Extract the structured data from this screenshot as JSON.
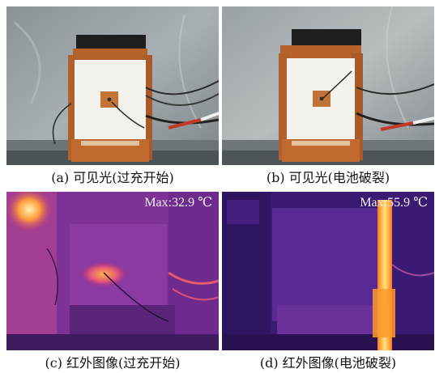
{
  "panels": {
    "a": {
      "caption": "(a)  可见光(过充开始)"
    },
    "b": {
      "caption": "(b)  可见光(电池破裂)"
    },
    "c": {
      "caption": "(c)  红外图像(过充开始)",
      "max_label": "Max:32.9 ℃"
    },
    "d": {
      "caption": "(d)  红外图像(电池破裂)",
      "max_label": "Max:55.9 ℃"
    }
  }
}
